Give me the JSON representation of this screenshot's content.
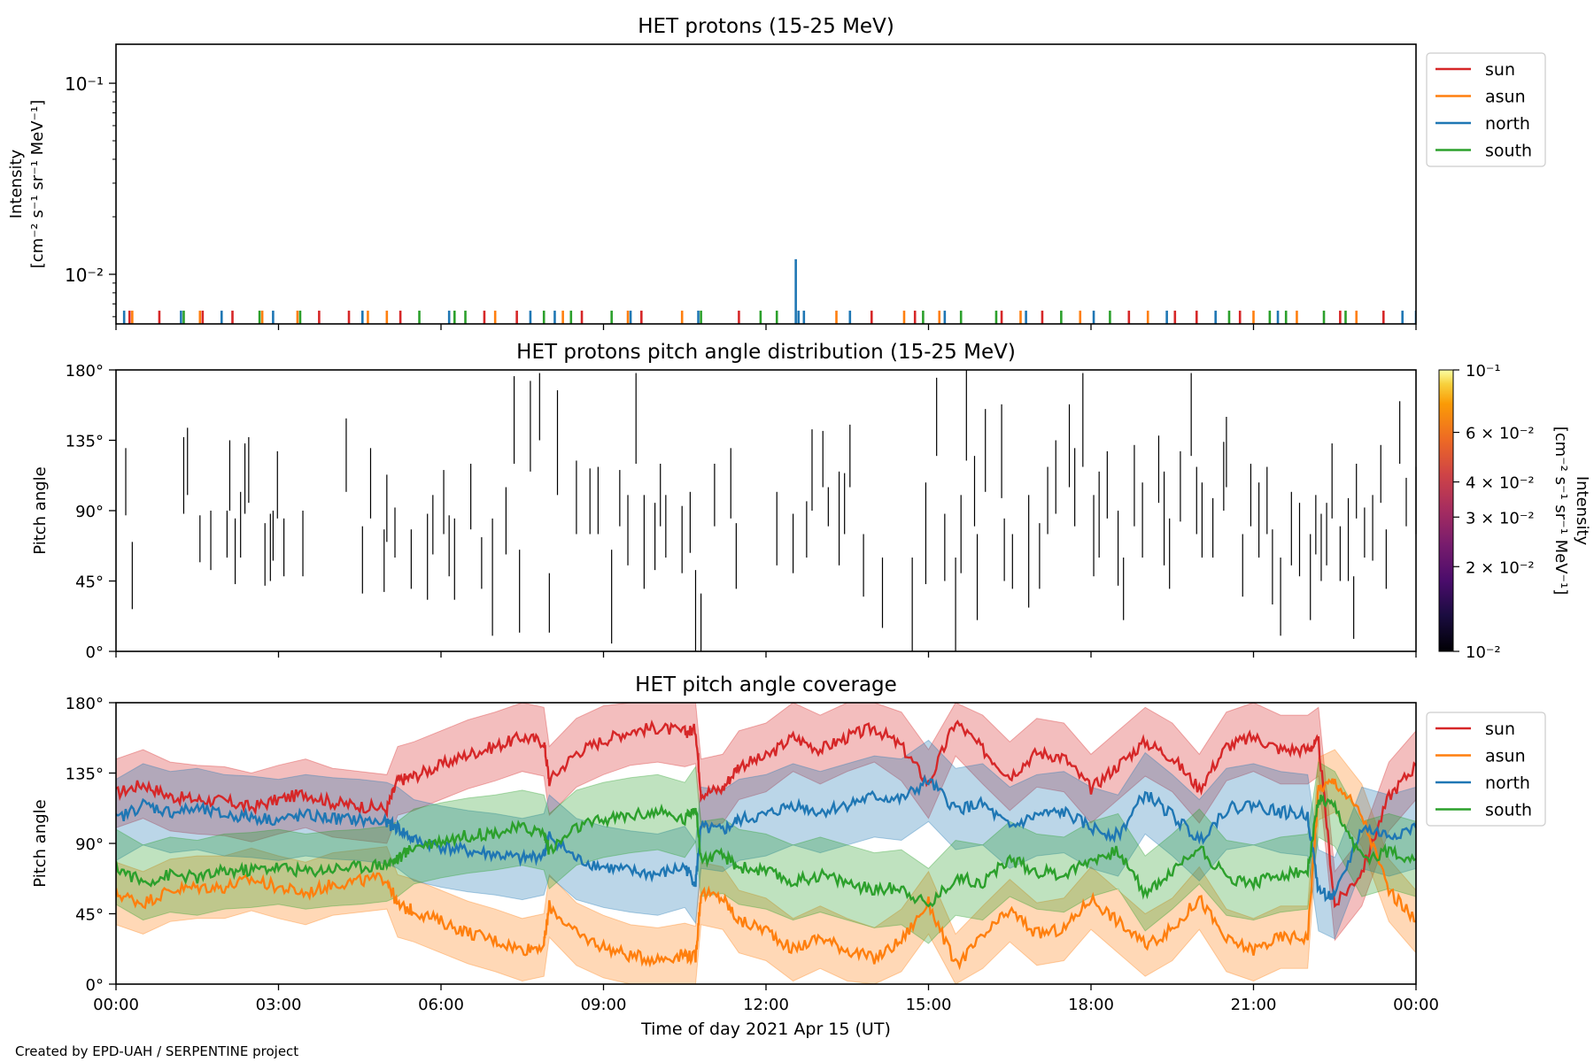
{
  "footer": {
    "credit": "Created by EPD-UAH / SERPENTINE project"
  },
  "colors": {
    "sun": "#d62728",
    "asun": "#ff7f0e",
    "north": "#1f77b4",
    "south": "#2ca02c",
    "axis": "#000000"
  },
  "shared_x": {
    "label": "Time of day 2021 Apr 15 (UT)",
    "range_hours": [
      0,
      24
    ],
    "ticks": [
      0,
      3,
      6,
      9,
      12,
      15,
      18,
      21,
      24
    ],
    "tick_labels": [
      "00:00",
      "03:00",
      "06:00",
      "09:00",
      "12:00",
      "15:00",
      "18:00",
      "21:00",
      "00:00"
    ]
  },
  "chart_data": [
    {
      "type": "line",
      "title": "HET protons (15-25 MeV)",
      "ylabel_line1": "Intensity",
      "ylabel_line2": "[cm⁻² s⁻¹ sr⁻¹ MeV⁻¹]",
      "yscale": "log",
      "ylim": [
        0.0055,
        0.16
      ],
      "ytick_values": [
        0.01,
        0.1
      ],
      "ytick_labels": [
        "10⁻²",
        "10⁻¹"
      ],
      "legend": [
        "sun",
        "asun",
        "north",
        "south"
      ],
      "legend_position": "outside-right",
      "baseline_value": 0.0058,
      "series": [
        {
          "name": "sun",
          "spikes_h": [
            0.25,
            0.8,
            1.6,
            2.15,
            3.75,
            4.3,
            5.25,
            6.8,
            7.4,
            8.6,
            9.7,
            11.5,
            13.95,
            14.75,
            16.35,
            17.1,
            18.7,
            19.55,
            19.95,
            20.75,
            22.6,
            23.4
          ]
        },
        {
          "name": "asun",
          "spikes_h": [
            0.3,
            1.55,
            2.7,
            3.35,
            4.65,
            5.0,
            7.0,
            8.25,
            9.45,
            10.45,
            13.3,
            14.55,
            15.2,
            16.7,
            17.8,
            19.05,
            21.0,
            21.8,
            22.9
          ]
        },
        {
          "name": "north",
          "spikes_h": [
            0.15,
            1.2,
            1.95,
            2.9,
            4.55,
            6.15,
            7.65,
            8.1,
            9.5,
            10.75,
            12.6,
            12.7,
            13.55,
            15.3,
            16.8,
            18.05,
            19.4,
            20.3,
            21.45,
            23.75,
            24.0
          ]
        },
        {
          "name": "south",
          "spikes_h": [
            1.25,
            2.65,
            3.4,
            5.6,
            6.25,
            6.45,
            7.9,
            8.4,
            9.15,
            10.8,
            11.9,
            12.2,
            14.9,
            15.6,
            16.25,
            17.45,
            18.35,
            20.55,
            21.3,
            21.6,
            22.3,
            22.7
          ]
        }
      ],
      "annotations": [
        {
          "series": "north",
          "time_h": 12.55,
          "value": 0.012
        }
      ]
    },
    {
      "type": "heatmap",
      "title": "HET protons pitch angle distribution (15-25 MeV)",
      "ylabel": "Pitch angle",
      "ylim": [
        0,
        180
      ],
      "ytick_values": [
        0,
        45,
        90,
        135,
        180
      ],
      "ytick_labels": [
        "0°",
        "45°",
        "90°",
        "135°",
        "180°"
      ],
      "colorbar": {
        "label_line1": "Intensity",
        "label_line2": "[cm⁻² s⁻¹ sr⁻¹ MeV⁻¹]",
        "scale": "log",
        "range": [
          0.01,
          0.1
        ],
        "tick_values": [
          0.01,
          0.02,
          0.03,
          0.04,
          0.06,
          0.1
        ],
        "tick_labels": [
          "10⁻²",
          "2 × 10⁻²",
          "3 × 10⁻²",
          "4 × 10⁻²",
          "6 × 10⁻²",
          "10⁻¹"
        ],
        "colormap": "inferno"
      },
      "segments": [
        [
          0.18,
          87,
          130
        ],
        [
          0.3,
          27,
          70
        ],
        [
          1.25,
          88,
          137
        ],
        [
          1.32,
          100,
          143
        ],
        [
          1.55,
          57,
          87
        ],
        [
          1.75,
          52,
          90
        ],
        [
          2.05,
          60,
          90
        ],
        [
          2.1,
          90,
          135
        ],
        [
          2.2,
          43,
          85
        ],
        [
          2.3,
          60,
          102
        ],
        [
          2.38,
          88,
          133
        ],
        [
          2.45,
          95,
          137
        ],
        [
          2.75,
          42,
          82
        ],
        [
          2.85,
          45,
          88
        ],
        [
          2.9,
          58,
          90
        ],
        [
          2.98,
          85,
          128
        ],
        [
          3.1,
          48,
          85
        ],
        [
          3.45,
          48,
          90
        ],
        [
          4.25,
          102,
          149
        ],
        [
          4.55,
          37,
          80
        ],
        [
          4.7,
          85,
          130
        ],
        [
          4.95,
          38,
          78
        ],
        [
          5.0,
          70,
          113
        ],
        [
          5.15,
          60,
          92
        ],
        [
          5.45,
          40,
          78
        ],
        [
          5.75,
          33,
          88
        ],
        [
          5.85,
          62,
          100
        ],
        [
          6.05,
          75,
          116
        ],
        [
          6.15,
          48,
          87
        ],
        [
          6.25,
          33,
          85
        ],
        [
          6.55,
          78,
          120
        ],
        [
          6.75,
          40,
          73
        ],
        [
          6.95,
          10,
          85
        ],
        [
          7.2,
          62,
          105
        ],
        [
          7.35,
          120,
          176
        ],
        [
          7.45,
          12,
          65
        ],
        [
          7.65,
          115,
          173
        ],
        [
          7.82,
          135,
          178
        ],
        [
          8.0,
          12,
          50
        ],
        [
          8.15,
          100,
          167
        ],
        [
          8.5,
          75,
          122
        ],
        [
          8.75,
          75,
          117
        ],
        [
          8.9,
          75,
          118
        ],
        [
          9.15,
          5,
          65
        ],
        [
          9.3,
          80,
          116
        ],
        [
          9.45,
          55,
          100
        ],
        [
          9.6,
          120,
          178
        ],
        [
          9.75,
          40,
          100
        ],
        [
          9.95,
          52,
          95
        ],
        [
          10.05,
          80,
          120
        ],
        [
          10.15,
          60,
          100
        ],
        [
          10.45,
          50,
          93
        ],
        [
          10.6,
          63,
          102
        ],
        [
          10.7,
          0,
          52
        ],
        [
          10.8,
          0,
          37
        ],
        [
          11.05,
          80,
          120
        ],
        [
          11.35,
          85,
          130
        ],
        [
          11.45,
          40,
          82
        ],
        [
          12.2,
          55,
          102
        ],
        [
          12.5,
          50,
          88
        ],
        [
          12.75,
          60,
          96
        ],
        [
          12.85,
          90,
          142
        ],
        [
          13.05,
          105,
          141
        ],
        [
          13.15,
          80,
          105
        ],
        [
          13.35,
          55,
          115
        ],
        [
          13.45,
          75,
          114
        ],
        [
          13.55,
          105,
          145
        ],
        [
          13.8,
          35,
          75
        ],
        [
          14.15,
          15,
          60
        ],
        [
          14.7,
          0,
          60
        ],
        [
          14.95,
          43,
          108
        ],
        [
          15.15,
          125,
          175
        ],
        [
          15.3,
          45,
          88
        ],
        [
          15.5,
          0,
          60
        ],
        [
          15.6,
          50,
          100
        ],
        [
          15.7,
          122,
          180
        ],
        [
          15.85,
          80,
          125
        ],
        [
          15.9,
          20,
          75
        ],
        [
          16.05,
          102,
          155
        ],
        [
          16.35,
          98,
          158
        ],
        [
          16.4,
          45,
          85
        ],
        [
          16.55,
          40,
          75
        ],
        [
          16.85,
          28,
          100
        ],
        [
          17.05,
          40,
          82
        ],
        [
          17.2,
          75,
          118
        ],
        [
          17.35,
          88,
          135
        ],
        [
          17.6,
          105,
          158
        ],
        [
          17.7,
          80,
          130
        ],
        [
          17.85,
          118,
          178
        ],
        [
          18.05,
          48,
          100
        ],
        [
          18.15,
          60,
          115
        ],
        [
          18.3,
          85,
          128
        ],
        [
          18.5,
          42,
          90
        ],
        [
          18.6,
          20,
          60
        ],
        [
          18.8,
          80,
          132
        ],
        [
          18.95,
          60,
          108
        ],
        [
          19.25,
          95,
          138
        ],
        [
          19.35,
          55,
          115
        ],
        [
          19.45,
          40,
          85
        ],
        [
          19.65,
          83,
          128
        ],
        [
          19.85,
          125,
          178
        ],
        [
          19.95,
          75,
          118
        ],
        [
          20.05,
          60,
          108
        ],
        [
          20.25,
          60,
          98
        ],
        [
          20.45,
          90,
          134
        ],
        [
          20.5,
          105,
          150
        ],
        [
          20.8,
          35,
          75
        ],
        [
          20.95,
          80,
          120
        ],
        [
          21.1,
          60,
          108
        ],
        [
          21.25,
          75,
          118
        ],
        [
          21.35,
          30,
          78
        ],
        [
          21.5,
          10,
          60
        ],
        [
          21.7,
          55,
          102
        ],
        [
          21.85,
          48,
          95
        ],
        [
          22.05,
          20,
          75
        ],
        [
          22.15,
          62,
          100
        ],
        [
          22.25,
          45,
          88
        ],
        [
          22.35,
          55,
          95
        ],
        [
          22.45,
          85,
          133
        ],
        [
          22.6,
          45,
          80
        ],
        [
          22.75,
          45,
          98
        ],
        [
          22.85,
          8,
          48
        ],
        [
          22.9,
          85,
          120
        ],
        [
          23.05,
          60,
          92
        ],
        [
          23.2,
          58,
          100
        ],
        [
          23.35,
          95,
          132
        ],
        [
          23.45,
          40,
          78
        ],
        [
          23.7,
          120,
          160
        ],
        [
          23.82,
          80,
          111
        ],
        [
          24.0,
          75,
          118
        ]
      ]
    },
    {
      "type": "area",
      "title": "HET pitch angle coverage",
      "xlabel": "Time of day 2021 Apr 15 (UT)",
      "ylabel": "Pitch angle",
      "ylim": [
        0,
        180
      ],
      "ytick_values": [
        0,
        45,
        90,
        135,
        180
      ],
      "ytick_labels": [
        "0°",
        "45°",
        "90°",
        "135°",
        "180°"
      ],
      "legend": [
        "sun",
        "asun",
        "north",
        "south"
      ],
      "legend_position": "outside-right",
      "x": [
        0,
        0.5,
        1,
        1.5,
        2,
        2.5,
        3,
        3.5,
        4,
        4.5,
        5,
        5.2,
        5.5,
        6,
        6.5,
        7,
        7.5,
        7.9,
        8,
        8.5,
        9,
        9.5,
        10,
        10.5,
        10.7,
        10.8,
        11.2,
        11.5,
        12,
        12.5,
        13,
        13.5,
        14,
        14.5,
        15,
        15.5,
        16,
        16.5,
        17,
        17.5,
        18,
        18.5,
        19,
        19.5,
        20,
        20.5,
        21,
        21.5,
        22,
        22.2,
        22.5,
        23,
        23.5,
        24
      ],
      "series": [
        {
          "name": "sun",
          "half_width": 22,
          "values": [
            122,
            128,
            120,
            118,
            117,
            113,
            118,
            122,
            116,
            114,
            112,
            130,
            133,
            140,
            147,
            152,
            158,
            155,
            130,
            148,
            156,
            162,
            164,
            161,
            163,
            122,
            125,
            140,
            145,
            158,
            150,
            158,
            164,
            152,
            128,
            168,
            150,
            133,
            148,
            145,
            125,
            140,
            155,
            145,
            125,
            152,
            158,
            150,
            150,
            155,
            50,
            72,
            120,
            140
          ]
        },
        {
          "name": "asun",
          "half_width": 20,
          "values": [
            58,
            52,
            60,
            62,
            62,
            67,
            62,
            58,
            64,
            66,
            68,
            50,
            47,
            40,
            33,
            28,
            22,
            25,
            50,
            32,
            24,
            18,
            16,
            19,
            17,
            58,
            55,
            40,
            35,
            22,
            30,
            22,
            16,
            28,
            52,
            12,
            30,
            47,
            32,
            35,
            55,
            40,
            25,
            35,
            55,
            28,
            22,
            30,
            30,
            125,
            130,
            108,
            60,
            40
          ]
        },
        {
          "name": "north",
          "half_width": 26,
          "values": [
            105,
            115,
            110,
            112,
            108,
            107,
            105,
            108,
            106,
            105,
            103,
            100,
            92,
            88,
            85,
            83,
            80,
            83,
            95,
            80,
            75,
            72,
            70,
            75,
            65,
            100,
            98,
            105,
            108,
            115,
            110,
            115,
            120,
            118,
            130,
            112,
            115,
            100,
            108,
            110,
            100,
            95,
            122,
            108,
            92,
            112,
            115,
            110,
            108,
            60,
            55,
            100,
            95,
            100
          ]
        },
        {
          "name": "south",
          "half_width": 24,
          "values": [
            75,
            65,
            70,
            68,
            72,
            73,
            75,
            72,
            74,
            75,
            77,
            80,
            88,
            92,
            95,
            97,
            100,
            97,
            85,
            100,
            105,
            108,
            110,
            105,
            115,
            80,
            82,
            75,
            72,
            65,
            70,
            65,
            60,
            62,
            50,
            68,
            65,
            80,
            72,
            70,
            80,
            85,
            58,
            72,
            88,
            68,
            65,
            70,
            72,
            118,
            112,
            80,
            85,
            80
          ]
        }
      ]
    }
  ]
}
